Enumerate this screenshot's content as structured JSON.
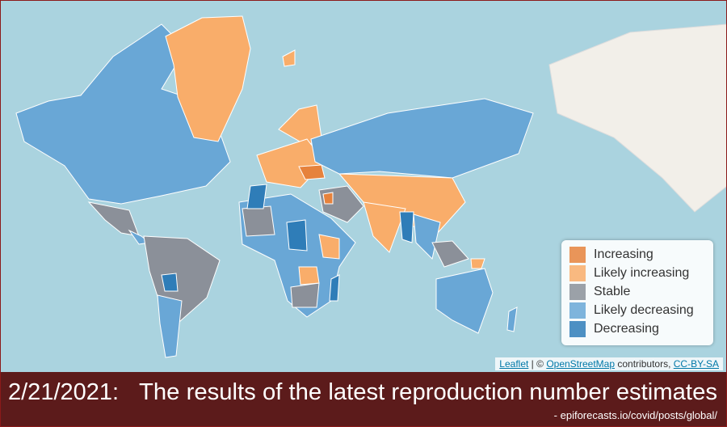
{
  "legend": {
    "items": [
      {
        "label": "Increasing",
        "color": "#e6823c"
      },
      {
        "label": "Likely increasing",
        "color": "#f9ad6a"
      },
      {
        "label": "Stable",
        "color": "#8b9099"
      },
      {
        "label": "Likely decreasing",
        "color": "#69a7d6"
      },
      {
        "label": "Decreasing",
        "color": "#2f7db8"
      }
    ]
  },
  "attribution": {
    "leaflet": "Leaflet",
    "separator": "| ©",
    "osm": "OpenStreetMap",
    "contributors": "contributors,",
    "license": "CC-BY-SA"
  },
  "caption": {
    "date": "2/21/2021:",
    "title": "The results of the latest reproduction number estimates",
    "source": "- epiforecasts.io/covid/posts/global/"
  }
}
